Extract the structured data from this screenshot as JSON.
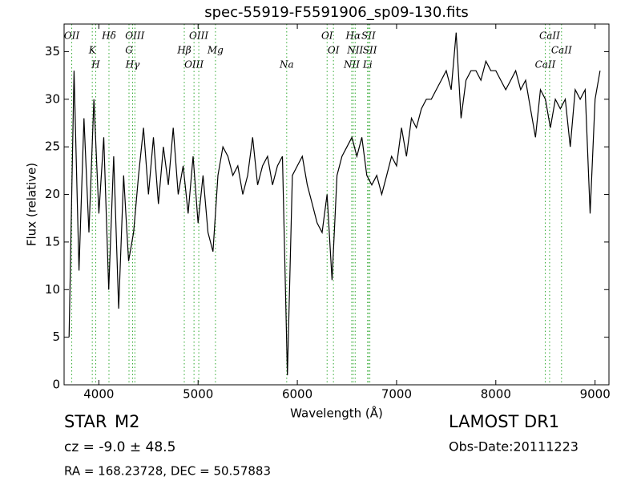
{
  "chart_data": {
    "type": "line",
    "title": "spec-55919-F5591906_sp09-130.fits",
    "xlabel": "Wavelength (Å)",
    "ylabel": "Flux (relative)",
    "object_class": "STAR",
    "subclass": "M2",
    "redshift_text": "cz = -9.0 ± 48.5",
    "coords_text": "RA = 168.23728, DEC = 50.57883",
    "survey": "LAMOST DR1",
    "obs_date": "Obs-Date:20111223",
    "color": "#000000",
    "line_color": "#33aa33",
    "xlim": [
      3650,
      9140
    ],
    "ylim": [
      0,
      37.9
    ],
    "xticks": [
      4000,
      5000,
      6000,
      7000,
      8000,
      9000
    ],
    "yticks": [
      0,
      5,
      10,
      15,
      20,
      25,
      30,
      35
    ],
    "x": [
      3700,
      3750,
      3800,
      3850,
      3900,
      3950,
      4000,
      4050,
      4100,
      4150,
      4200,
      4250,
      4300,
      4350,
      4400,
      4450,
      4500,
      4550,
      4600,
      4650,
      4700,
      4750,
      4800,
      4850,
      4900,
      4950,
      5000,
      5050,
      5100,
      5150,
      5200,
      5250,
      5300,
      5350,
      5400,
      5450,
      5500,
      5550,
      5600,
      5650,
      5700,
      5750,
      5800,
      5850,
      5900,
      5950,
      6000,
      6050,
      6100,
      6150,
      6200,
      6250,
      6300,
      6350,
      6400,
      6450,
      6500,
      6550,
      6600,
      6650,
      6700,
      6750,
      6800,
      6850,
      6900,
      6950,
      7000,
      7050,
      7100,
      7150,
      7200,
      7250,
      7300,
      7350,
      7400,
      7450,
      7500,
      7550,
      7600,
      7650,
      7700,
      7750,
      7800,
      7850,
      7900,
      7950,
      8000,
      8050,
      8100,
      8150,
      8200,
      8250,
      8300,
      8350,
      8400,
      8450,
      8500,
      8550,
      8600,
      8650,
      8700,
      8750,
      8800,
      8850,
      8900,
      8950,
      9000,
      9050
    ],
    "values": [
      5,
      33,
      12,
      28,
      16,
      30,
      18,
      26,
      10,
      24,
      8,
      22,
      13,
      16,
      22,
      27,
      20,
      26,
      19,
      25,
      21,
      27,
      20,
      23,
      18,
      24,
      17,
      22,
      16,
      14,
      22,
      25,
      24,
      22,
      23,
      20,
      22,
      26,
      21,
      23,
      24,
      21,
      23,
      24,
      1,
      22,
      23,
      24,
      21,
      19,
      17,
      16,
      20,
      11,
      22,
      24,
      25,
      26,
      24,
      26,
      22,
      21,
      22,
      20,
      22,
      24,
      23,
      27,
      24,
      28,
      27,
      29,
      30,
      30,
      31,
      32,
      33,
      31,
      37,
      28,
      32,
      33,
      33,
      32,
      34,
      33,
      33,
      32,
      31,
      32,
      33,
      31,
      32,
      29,
      26,
      31,
      30,
      27,
      30,
      29,
      30,
      25,
      31,
      30,
      31,
      18,
      30,
      33
    ],
    "lines": [
      {
        "label": "OII",
        "wavelength": 3727
      },
      {
        "label": "K",
        "wavelength": 3934
      },
      {
        "label": "H",
        "wavelength": 3969
      },
      {
        "label": "Hδ",
        "wavelength": 4102
      },
      {
        "label": "G",
        "wavelength": 4304
      },
      {
        "label": "Hγ",
        "wavelength": 4340
      },
      {
        "label": "OIII",
        "wavelength": 4363
      },
      {
        "label": "Hβ",
        "wavelength": 4861
      },
      {
        "label": "OIII",
        "wavelength": 4959
      },
      {
        "label": "OIII",
        "wavelength": 5007
      },
      {
        "label": "Mg",
        "wavelength": 5175
      },
      {
        "label": "Na",
        "wavelength": 5893
      },
      {
        "label": "OI",
        "wavelength": 6300
      },
      {
        "label": "OI",
        "wavelength": 6364
      },
      {
        "label": "NII",
        "wavelength": 6548
      },
      {
        "label": "Hα",
        "wavelength": 6563
      },
      {
        "label": "NII",
        "wavelength": 6583
      },
      {
        "label": "Li",
        "wavelength": 6708
      },
      {
        "label": "SII",
        "wavelength": 6717
      },
      {
        "label": "SII",
        "wavelength": 6731
      },
      {
        "label": "CaII",
        "wavelength": 8498
      },
      {
        "label": "CaII",
        "wavelength": 8542
      },
      {
        "label": "CaII",
        "wavelength": 8662
      }
    ]
  }
}
